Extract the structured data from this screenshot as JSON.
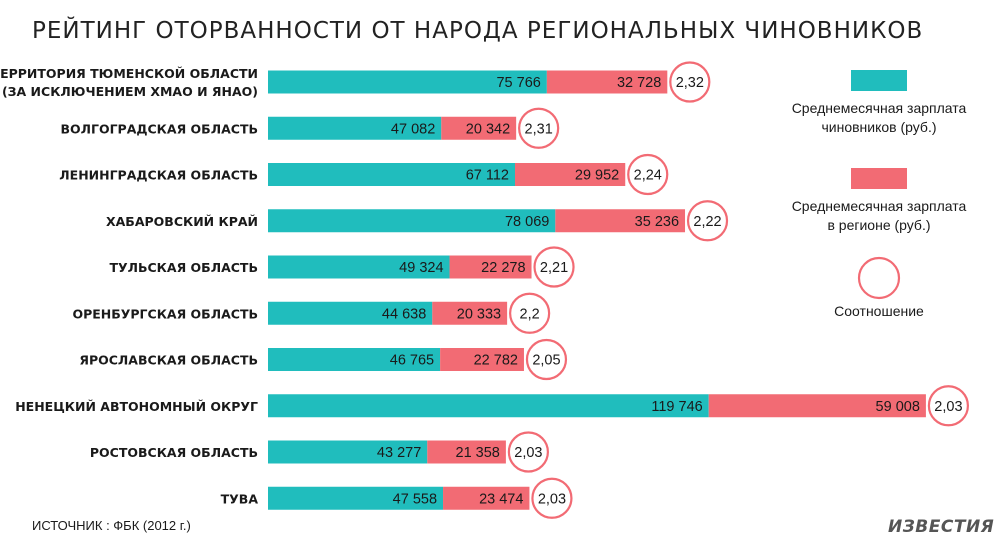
{
  "chart_data": {
    "type": "bar",
    "stacked": true,
    "orientation": "horizontal",
    "title": "РЕЙТИНГ ОТОРВАННОСТИ ОТ НАРОДА РЕГИОНАЛЬНЫХ ЧИНОВНИКОВ",
    "categories": [
      [
        "ТЕРРИТОРИЯ ТЮМЕНСКОЙ ОБЛАСТИ",
        "(ЗА ИСКЛЮЧЕНИЕМ ХМАО И ЯНАО)"
      ],
      [
        "ВОЛГОГРАДСКАЯ ОБЛАСТЬ"
      ],
      [
        "ЛЕНИНГРАДСКАЯ ОБЛАСТЬ"
      ],
      [
        "ХАБАРОВСКИЙ КРАЙ"
      ],
      [
        "ТУЛЬСКАЯ ОБЛАСТЬ"
      ],
      [
        "ОРЕНБУРГСКАЯ ОБЛАСТЬ"
      ],
      [
        "ЯРОСЛАВСКАЯ ОБЛАСТЬ"
      ],
      [
        "НЕНЕЦКИЙ АВТОНОМНЫЙ ОКРУГ"
      ],
      [
        "РОСТОВСКАЯ ОБЛАСТЬ"
      ],
      [
        "ТУВА"
      ]
    ],
    "series": [
      {
        "name": "Среднемесячная зарплата чиновников (руб.)",
        "color": "#20bdbd",
        "values": [
          75766,
          47082,
          67112,
          78069,
          49324,
          44638,
          46765,
          119746,
          43277,
          47558
        ],
        "labels": [
          "75 766",
          "47 082",
          "67 112",
          "78 069",
          "49 324",
          "44 638",
          "46 765",
          "119 746",
          "43 277",
          "47 558"
        ]
      },
      {
        "name": "Среднемесячная зарплата в регионе (руб.)",
        "color": "#f26b74",
        "values": [
          32728,
          20342,
          29952,
          35236,
          22278,
          20333,
          22782,
          59008,
          21358,
          23474
        ],
        "labels": [
          "32 728",
          "20 342",
          "29 952",
          "35 236",
          "22 278",
          "20 333",
          "22 782",
          "59 008",
          "21 358",
          "23 474"
        ]
      }
    ],
    "ratio": {
      "name": "Соотношение",
      "color": "#f26b74",
      "values": [
        2.32,
        2.31,
        2.24,
        2.22,
        2.21,
        2.2,
        2.05,
        2.03,
        2.03,
        2.03
      ],
      "labels": [
        "2,32",
        "2,31",
        "2,24",
        "2,22",
        "2,21",
        "2,2",
        "2,05",
        "2,03",
        "2,03",
        "2,03"
      ]
    },
    "legend": {
      "placement": "right",
      "items": [
        {
          "lines": [
            "Среднемесячная зарплата",
            "чиновников (руб.)"
          ],
          "color": "#20bdbd",
          "kind": "box"
        },
        {
          "lines": [
            "Среднемесячная зарплата",
            "в регионе (руб.)"
          ],
          "color": "#f26b74",
          "kind": "box"
        },
        {
          "lines": [
            "Соотношение"
          ],
          "color": "#f26b74",
          "kind": "circle"
        }
      ]
    }
  },
  "footer": {
    "source": "ИСТОЧНИК : ФБК (2012 г.)",
    "logo": "ИЗВЕСТИЯ"
  }
}
